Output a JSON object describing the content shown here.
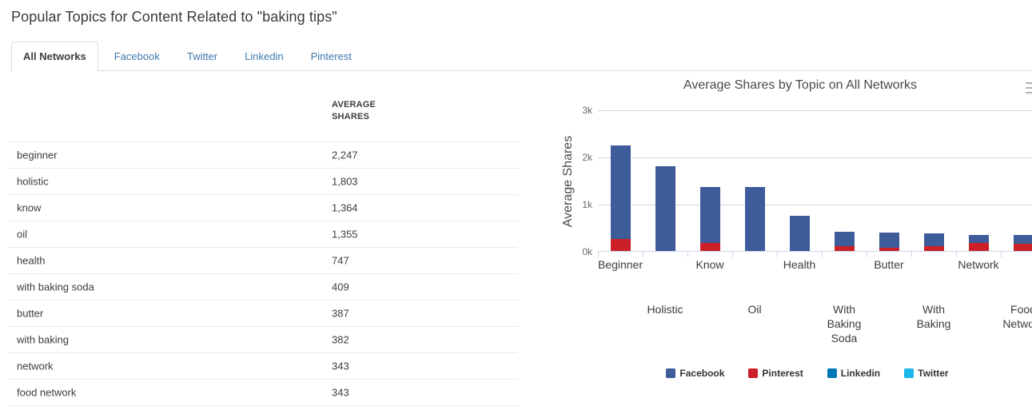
{
  "page": {
    "title": "Popular Topics for Content Related to \"baking tips\""
  },
  "tabs": [
    {
      "label": "All Networks",
      "active": true
    },
    {
      "label": "Facebook",
      "active": false
    },
    {
      "label": "Twitter",
      "active": false
    },
    {
      "label": "Linkedin",
      "active": false
    },
    {
      "label": "Pinterest",
      "active": false
    }
  ],
  "table": {
    "shares_header": "AVERAGE SHARES",
    "rows": [
      {
        "topic": "beginner",
        "shares": "2,247"
      },
      {
        "topic": "holistic",
        "shares": "1,803"
      },
      {
        "topic": "know",
        "shares": "1,364"
      },
      {
        "topic": "oil",
        "shares": "1,355"
      },
      {
        "topic": "health",
        "shares": "747"
      },
      {
        "topic": "with baking soda",
        "shares": "409"
      },
      {
        "topic": "butter",
        "shares": "387"
      },
      {
        "topic": "with baking",
        "shares": "382"
      },
      {
        "topic": "network",
        "shares": "343"
      },
      {
        "topic": "food network",
        "shares": "343"
      }
    ]
  },
  "chart_data": {
    "type": "bar",
    "stacked": true,
    "title": "Average Shares by Topic on All Networks",
    "ylabel": "Average Shares",
    "xlabel": "",
    "categories": [
      "Beginner",
      "Holistic",
      "Know",
      "Oil",
      "Health",
      "With Baking Soda",
      "Butter",
      "With Baking",
      "Network",
      "Food Network"
    ],
    "series": [
      {
        "name": "Facebook",
        "color": "#3e5b9a",
        "values": [
          1987,
          1803,
          1194,
          1355,
          747,
          309,
          312,
          272,
          178,
          193
        ]
      },
      {
        "name": "Pinterest",
        "color": "#cb2027",
        "values": [
          260,
          0,
          170,
          0,
          0,
          100,
          75,
          110,
          165,
          150
        ]
      },
      {
        "name": "Linkedin",
        "color": "#0077b5",
        "values": [
          0,
          0,
          0,
          0,
          0,
          0,
          0,
          0,
          0,
          0
        ]
      },
      {
        "name": "Twitter",
        "color": "#1cb7eb",
        "values": [
          0,
          0,
          0,
          0,
          0,
          0,
          0,
          0,
          0,
          0
        ]
      }
    ],
    "totals": [
      2247,
      1803,
      1364,
      1355,
      747,
      409,
      387,
      382,
      343,
      343
    ],
    "ylim": [
      0,
      3000
    ],
    "yticks": [
      "0k",
      "1k",
      "2k",
      "3k"
    ],
    "grid": true,
    "legend_position": "bottom",
    "menu_icon": "hamburger-menu-icon"
  }
}
